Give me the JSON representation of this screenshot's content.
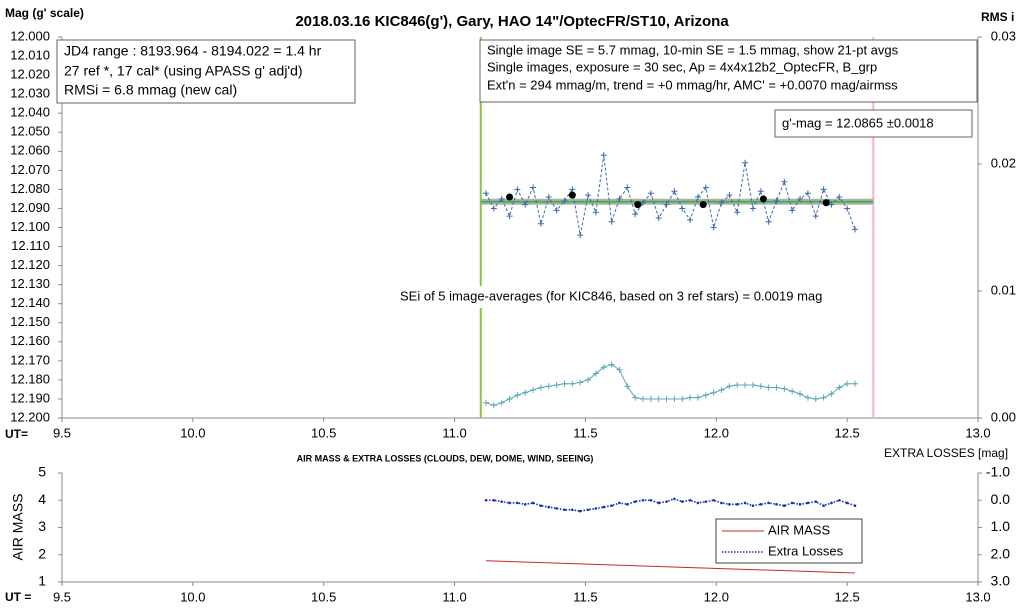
{
  "chart_data": [
    {
      "type": "line",
      "title": "2018.03.16  KIC846(g'),  Gary,  HAO 14\"/OptecFR/ST10,  Arizona",
      "y_label": "Mag (g' scale)",
      "y2_label": "RMS i",
      "x_label": "UT=",
      "xlim": [
        9.5,
        13.0
      ],
      "xticks": [
        9.5,
        {
          "value": 10,
          "label": "10.0"
        },
        10.5,
        {
          "value": 11,
          "label": "11.0"
        },
        11.5,
        {
          "value": 12,
          "label": "12.0"
        },
        12.5,
        {
          "value": 13,
          "label": "13.0"
        }
      ],
      "ylim": [
        12.0,
        12.2
      ],
      "y_inverted": true,
      "yticks": [
        {
          "value": 12.0,
          "label": "12.000"
        },
        {
          "value": 12.01,
          "label": "12.010"
        },
        {
          "value": 12.02,
          "label": "12.020"
        },
        {
          "value": 12.03,
          "label": "12.030"
        },
        {
          "value": 12.04,
          "label": "12.040"
        },
        {
          "value": 12.05,
          "label": "12.050"
        },
        {
          "value": 12.06,
          "label": "12.060"
        },
        {
          "value": 12.07,
          "label": "12.070"
        },
        {
          "value": 12.08,
          "label": "12.080"
        },
        {
          "value": 12.09,
          "label": "12.090"
        },
        {
          "value": 12.1,
          "label": "12.100"
        },
        {
          "value": 12.11,
          "label": "12.110"
        },
        {
          "value": 12.12,
          "label": "12.120"
        },
        {
          "value": 12.13,
          "label": "12.130"
        },
        {
          "value": 12.14,
          "label": "12.140"
        },
        {
          "value": 12.15,
          "label": "12.150"
        },
        {
          "value": 12.16,
          "label": "12.160"
        },
        {
          "value": 12.17,
          "label": "12.170"
        },
        {
          "value": 12.18,
          "label": "12.180"
        },
        {
          "value": 12.19,
          "label": "12.190"
        },
        {
          "value": 12.2,
          "label": "12.200"
        }
      ],
      "y2lim": [
        0,
        0.03
      ],
      "y2ticks": [
        {
          "value": 0,
          "label": "0.00"
        },
        0.01,
        0.02,
        0.03
      ],
      "vlines": [
        {
          "value": 11.1,
          "color": "#8dc63f"
        },
        {
          "value": 12.6,
          "color": "#f4b6bd"
        }
      ],
      "hline": {
        "value": 12.0865,
        "start": 11.1,
        "end": 12.6,
        "color": "#4caf50"
      },
      "series": [
        {
          "color": "#3d6aa8",
          "line": "dashed",
          "marker": "plus",
          "x": [
            11.12,
            11.15,
            11.18,
            11.21,
            11.24,
            11.27,
            11.3,
            11.33,
            11.36,
            11.39,
            11.42,
            11.45,
            11.48,
            11.51,
            11.54,
            11.57,
            11.6,
            11.63,
            11.66,
            11.69,
            11.72,
            11.75,
            11.78,
            11.81,
            11.84,
            11.87,
            11.9,
            11.93,
            11.96,
            11.99,
            12.02,
            12.05,
            12.08,
            12.11,
            12.14,
            12.17,
            12.2,
            12.23,
            12.26,
            12.29,
            12.32,
            12.35,
            12.38,
            12.41,
            12.44,
            12.47,
            12.5,
            12.53
          ],
          "values": [
            12.082,
            12.09,
            12.085,
            12.094,
            12.08,
            12.088,
            12.079,
            12.098,
            12.084,
            12.091,
            12.086,
            12.08,
            12.104,
            12.083,
            12.092,
            12.062,
            12.097,
            12.085,
            12.079,
            12.093,
            12.087,
            12.082,
            12.095,
            12.088,
            12.081,
            12.09,
            12.096,
            12.084,
            12.079,
            12.1,
            12.087,
            12.083,
            12.092,
            12.066,
            12.09,
            12.081,
            12.097,
            12.086,
            12.076,
            12.091,
            12.085,
            12.082,
            12.094,
            12.08,
            12.088,
            12.084,
            12.09,
            12.101
          ]
        },
        {
          "color": "#000000",
          "line": null,
          "marker": "dot",
          "x": [
            11.21,
            11.45,
            11.7,
            11.95,
            12.18,
            12.42
          ],
          "values": [
            12.084,
            12.083,
            12.088,
            12.088,
            12.085,
            12.087
          ]
        },
        {
          "color": "#5aa8b8",
          "line": "solid",
          "marker": "plus",
          "axis": "y2",
          "x": [
            11.12,
            11.15,
            11.18,
            11.21,
            11.24,
            11.27,
            11.3,
            11.33,
            11.36,
            11.39,
            11.42,
            11.45,
            11.48,
            11.51,
            11.54,
            11.57,
            11.6,
            11.63,
            11.66,
            11.69,
            11.72,
            11.75,
            11.78,
            11.81,
            11.84,
            11.87,
            11.9,
            11.93,
            11.96,
            11.99,
            12.02,
            12.05,
            12.08,
            12.11,
            12.14,
            12.17,
            12.2,
            12.23,
            12.26,
            12.29,
            12.32,
            12.35,
            12.38,
            12.41,
            12.44,
            12.47,
            12.5,
            12.53
          ],
          "values": [
            0.0012,
            0.001,
            0.0012,
            0.0015,
            0.0018,
            0.002,
            0.0022,
            0.0024,
            0.0025,
            0.0026,
            0.0027,
            0.0027,
            0.0028,
            0.003,
            0.0035,
            0.004,
            0.0042,
            0.0038,
            0.0025,
            0.0016,
            0.0015,
            0.0015,
            0.0015,
            0.0015,
            0.0015,
            0.0015,
            0.0016,
            0.0016,
            0.0018,
            0.002,
            0.0022,
            0.0025,
            0.0026,
            0.0026,
            0.0026,
            0.0025,
            0.0024,
            0.0024,
            0.0023,
            0.0021,
            0.0019,
            0.0016,
            0.0015,
            0.0016,
            0.0019,
            0.0024,
            0.0027,
            0.0027
          ]
        }
      ],
      "annotations": [
        [
          "JD4 range : 8193.964 - 8194.022 = 1.4  hr",
          "27 ref *, 17 cal* (using APASS g' adj'd)",
          "RMSi = 6.8 mmag (new cal)"
        ],
        [
          "Single image SE = 5.7 mmag, 10-min SE = 1.5 mmag, show  21-pt avgs",
          "Single images, exposure = 30 sec, Ap = 4x4x12b2_OptecFR,  B_grp",
          "Ext'n = 294 mmag/m, trend =  +0 mmag/hr, AMC' = +0.0070 mag/airmss"
        ],
        [
          "g'-mag = 12.0865 ±0.0018"
        ],
        [
          "SEi of 5 image-averages (for KIC846, based on 3 ref stars) = 0.0019  mag"
        ]
      ]
    },
    {
      "type": "line",
      "title": "AIR MASS & EXTRA LOSSES (CLOUDS, DEW, DOME, WIND, SEEING)",
      "y_label": "AIR MASS",
      "y2_label": "EXTRA LOSSES [mag]",
      "x_label": "UT =",
      "xlim": [
        9.5,
        13.0
      ],
      "xticks": [
        9.5,
        {
          "value": 10,
          "label": "10.0"
        },
        10.5,
        {
          "value": 11,
          "label": "11.0"
        },
        11.5,
        {
          "value": 12,
          "label": "12.0"
        },
        12.5,
        {
          "value": 13,
          "label": "13.0"
        }
      ],
      "ylim": [
        1,
        5
      ],
      "yticks": [
        1,
        2,
        3,
        4,
        5
      ],
      "y2lim": [
        -1,
        3
      ],
      "y2_inverted": true,
      "y2ticks": [
        {
          "value": -1,
          "label": "-1.0"
        },
        {
          "value": 0,
          "label": "0.0"
        },
        {
          "value": 1,
          "label": "1.0"
        },
        {
          "value": 2,
          "label": "2.0"
        },
        {
          "value": 3,
          "label": "3.0"
        }
      ],
      "legend": true,
      "series": [
        {
          "name": "AIR MASS",
          "color": "#c0282d",
          "line": "solid",
          "marker": null,
          "x": [
            11.12,
            12.53
          ],
          "values": [
            1.78,
            1.33
          ]
        },
        {
          "name": "Extra Losses",
          "color": "#1a2fa8",
          "line": "dotted",
          "marker": "dot",
          "axis": "y2",
          "x": [
            11.12,
            11.15,
            11.18,
            11.21,
            11.24,
            11.27,
            11.3,
            11.33,
            11.36,
            11.39,
            11.42,
            11.45,
            11.48,
            11.51,
            11.54,
            11.57,
            11.6,
            11.63,
            11.66,
            11.69,
            11.72,
            11.75,
            11.78,
            11.81,
            11.84,
            11.87,
            11.9,
            11.93,
            11.96,
            11.99,
            12.02,
            12.05,
            12.08,
            12.11,
            12.14,
            12.17,
            12.2,
            12.23,
            12.26,
            12.29,
            12.32,
            12.35,
            12.38,
            12.41,
            12.44,
            12.47,
            12.5,
            12.53
          ],
          "values": [
            0.0,
            0.0,
            0.05,
            0.1,
            0.1,
            0.15,
            0.1,
            0.2,
            0.25,
            0.3,
            0.35,
            0.35,
            0.4,
            0.35,
            0.3,
            0.25,
            0.2,
            0.1,
            0.15,
            0.05,
            0.0,
            0.0,
            0.1,
            0.05,
            -0.05,
            0.05,
            0.0,
            0.1,
            0.05,
            0.0,
            0.1,
            0.15,
            0.15,
            0.1,
            0.2,
            0.15,
            0.1,
            0.15,
            0.2,
            0.1,
            0.15,
            0.1,
            0.05,
            0.2,
            0.1,
            0.0,
            0.1,
            0.2
          ]
        }
      ]
    }
  ]
}
